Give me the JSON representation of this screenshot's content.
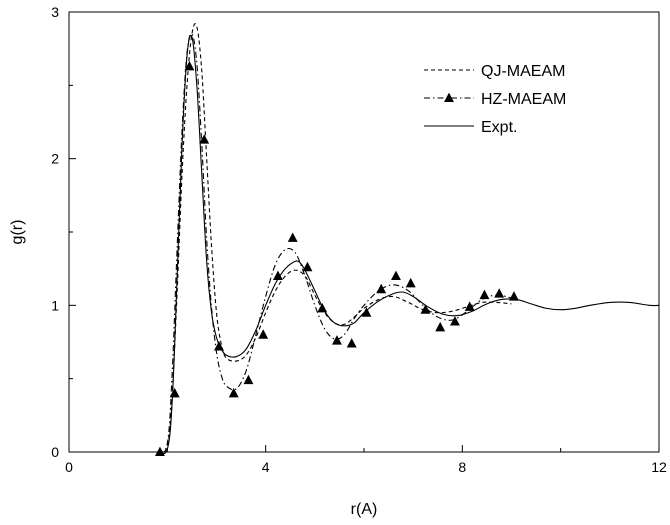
{
  "chart_data": {
    "type": "line",
    "title": "",
    "xlabel": "r(A)",
    "ylabel": "g(r)",
    "xlim": [
      0,
      12
    ],
    "ylim": [
      0,
      3
    ],
    "x_ticks": [
      0,
      4,
      8,
      12
    ],
    "y_ticks": [
      0,
      1,
      2,
      3
    ],
    "x_tick_labels": [
      "0",
      "4",
      "8",
      "12"
    ],
    "y_tick_labels": [
      "0",
      "1",
      "2",
      "3"
    ],
    "grid": false,
    "legend_position": "top-right",
    "series": [
      {
        "name": "QJ-MAEAM",
        "style": "dashed",
        "marker": "none",
        "color": "#000000",
        "x": [
          1.8,
          2.0,
          2.1,
          2.2,
          2.3,
          2.4,
          2.5,
          2.6,
          2.7,
          2.8,
          2.9,
          3.0,
          3.1,
          3.2,
          3.4,
          3.6,
          3.8,
          4.0,
          4.2,
          4.4,
          4.6,
          4.8,
          5.0,
          5.2,
          5.4,
          5.6,
          5.8,
          6.0,
          6.3,
          6.6,
          6.9,
          7.2,
          7.5,
          7.8,
          8.1,
          8.4,
          8.7,
          9.0
        ],
        "y": [
          0.0,
          0.04,
          0.4,
          1.1,
          1.9,
          2.5,
          2.85,
          2.9,
          2.6,
          2.0,
          1.4,
          0.95,
          0.73,
          0.64,
          0.62,
          0.66,
          0.78,
          0.95,
          1.1,
          1.2,
          1.24,
          1.2,
          1.07,
          0.95,
          0.88,
          0.87,
          0.92,
          0.98,
          1.04,
          1.06,
          1.02,
          0.97,
          0.95,
          0.96,
          0.99,
          1.02,
          1.02,
          1.01
        ]
      },
      {
        "name": "HZ-MAEAM",
        "style": "dash-dot",
        "marker": "triangle",
        "color": "#000000",
        "x": [
          1.8,
          2.0,
          2.1,
          2.2,
          2.3,
          2.4,
          2.5,
          2.6,
          2.7,
          2.8,
          2.9,
          3.0,
          3.1,
          3.2,
          3.4,
          3.6,
          3.8,
          4.0,
          4.2,
          4.4,
          4.6,
          4.8,
          5.0,
          5.2,
          5.4,
          5.6,
          5.8,
          6.0,
          6.3,
          6.6,
          6.9,
          7.2,
          7.5,
          7.8,
          8.1,
          8.4,
          8.7,
          9.0
        ],
        "y": [
          0.0,
          0.06,
          0.55,
          1.4,
          2.2,
          2.72,
          2.85,
          2.65,
          2.1,
          1.45,
          0.98,
          0.68,
          0.52,
          0.45,
          0.43,
          0.55,
          0.8,
          1.06,
          1.28,
          1.38,
          1.36,
          1.2,
          1.0,
          0.84,
          0.77,
          0.8,
          0.91,
          1.0,
          1.1,
          1.14,
          1.1,
          1.0,
          0.92,
          0.9,
          0.96,
          1.04,
          1.07,
          1.05
        ],
        "markers_x": [
          1.85,
          2.15,
          2.45,
          2.75,
          3.05,
          3.35,
          3.65,
          3.95,
          4.25,
          4.55,
          4.85,
          5.15,
          5.45,
          5.75,
          6.05,
          6.35,
          6.65,
          6.95,
          7.25,
          7.55,
          7.85,
          8.15,
          8.45,
          8.75,
          9.05
        ],
        "markers_y": [
          0.0,
          0.4,
          2.63,
          2.13,
          0.72,
          0.4,
          0.49,
          0.8,
          1.2,
          1.46,
          1.26,
          0.98,
          0.76,
          0.74,
          0.95,
          1.11,
          1.2,
          1.15,
          0.97,
          0.85,
          0.89,
          0.99,
          1.07,
          1.08,
          1.06
        ]
      },
      {
        "name": "Expt.",
        "style": "solid",
        "marker": "none",
        "color": "#000000",
        "x": [
          1.8,
          2.0,
          2.1,
          2.2,
          2.3,
          2.4,
          2.5,
          2.6,
          2.7,
          2.8,
          2.9,
          3.0,
          3.1,
          3.2,
          3.4,
          3.6,
          3.8,
          4.0,
          4.2,
          4.4,
          4.6,
          4.7,
          4.8,
          5.0,
          5.2,
          5.4,
          5.6,
          5.8,
          6.0,
          6.3,
          6.6,
          6.8,
          7.0,
          7.3,
          7.6,
          7.9,
          8.2,
          8.5,
          8.8,
          9.1,
          9.4,
          9.7,
          10.0,
          10.3,
          10.6,
          11.0,
          11.4,
          11.8,
          12.0
        ],
        "y": [
          0.0,
          0.02,
          0.35,
          1.2,
          2.1,
          2.7,
          2.83,
          2.5,
          1.9,
          1.3,
          0.95,
          0.78,
          0.7,
          0.66,
          0.65,
          0.7,
          0.83,
          1.0,
          1.15,
          1.25,
          1.3,
          1.29,
          1.24,
          1.1,
          0.96,
          0.88,
          0.86,
          0.88,
          0.95,
          1.03,
          1.08,
          1.09,
          1.06,
          0.99,
          0.94,
          0.93,
          0.96,
          1.01,
          1.04,
          1.04,
          1.01,
          0.98,
          0.97,
          0.98,
          1.0,
          1.02,
          1.02,
          1.0,
          1.0
        ]
      }
    ]
  }
}
